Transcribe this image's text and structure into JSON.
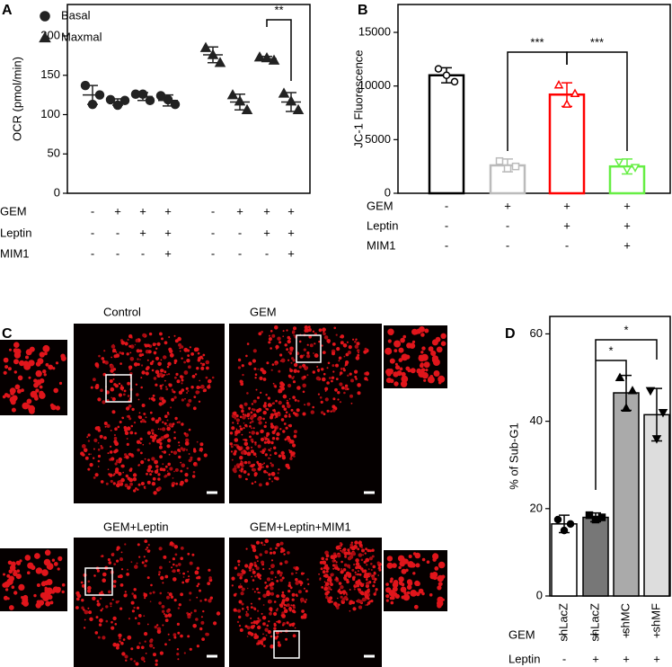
{
  "chart_data": [
    {
      "panel": "A",
      "type": "scatter",
      "ylabel": "OCR (pmol/min)",
      "ylim": [
        0,
        240
      ],
      "yticks": [
        0,
        50,
        100,
        150,
        200
      ],
      "series": [
        {
          "name": "Basal",
          "marker": "circle",
          "color": "#222222",
          "points": [
            [
              137,
              113,
              125
            ],
            [
              119,
              112,
              118
            ],
            [
              126,
              126,
              118
            ],
            [
              124,
              119,
              113
            ]
          ],
          "means": [
            125,
            116,
            123,
            118
          ],
          "errors": [
            12,
            4,
            5,
            7
          ]
        },
        {
          "name": "Maxmal",
          "marker": "triangle",
          "color": "#222222",
          "points": [
            [
              185,
              176,
              166
            ],
            [
              125,
              117,
              106
            ],
            [
              173,
              172,
              169
            ],
            [
              127,
              117,
              106
            ]
          ],
          "means": [
            176,
            116,
            171,
            116
          ],
          "errors": [
            10,
            10,
            3,
            12
          ]
        }
      ],
      "annotations": [
        {
          "label": "**",
          "from": 6,
          "to": 7
        }
      ],
      "conditions": [
        {
          "name": "GEM",
          "values": [
            "-",
            "+",
            "+",
            "+",
            "-",
            "+",
            "+",
            "+"
          ]
        },
        {
          "name": "Leptin",
          "values": [
            "-",
            "-",
            "+",
            "+",
            "-",
            "-",
            "+",
            "+"
          ]
        },
        {
          "name": "MIM1",
          "values": [
            "-",
            "-",
            "-",
            "+",
            "-",
            "-",
            "-",
            "+"
          ]
        }
      ]
    },
    {
      "panel": "B",
      "type": "bar",
      "ylabel": "JC-1 Fluorescence",
      "ylim": [
        0,
        17600
      ],
      "yticks": [
        0,
        5000,
        10000,
        15000
      ],
      "values": [
        11000,
        2600,
        9200,
        2500
      ],
      "errors": [
        700,
        600,
        1100,
        700
      ],
      "points": [
        [
          11600,
          11000,
          10400
        ],
        [
          3000,
          2300,
          2500
        ],
        [
          10100,
          8300,
          9300
        ],
        [
          2900,
          2200,
          2400
        ]
      ],
      "edge_colors": [
        "#000000",
        "#bbbbbb",
        "#ff0000",
        "#66ee44"
      ],
      "markers": [
        "circle",
        "square",
        "triangle",
        "triangle-down"
      ],
      "marker_fill": false,
      "annotations": [
        {
          "label": "***",
          "from": 1,
          "to": 2
        },
        {
          "label": "***",
          "from": 2,
          "to": 3
        }
      ],
      "conditions": [
        {
          "name": "GEM",
          "values": [
            "-",
            "+",
            "+",
            "+"
          ]
        },
        {
          "name": "Leptin",
          "values": [
            "-",
            "-",
            "+",
            "+"
          ]
        },
        {
          "name": "MIM1",
          "values": [
            "-",
            "-",
            "-",
            "+"
          ]
        }
      ]
    },
    {
      "panel": "D",
      "type": "bar",
      "ylabel": "% of Sub-G1",
      "ylim": [
        0,
        64
      ],
      "yticks": [
        0,
        20,
        40,
        60
      ],
      "categories": [
        "shLacZ",
        "shLacZ",
        "shMC",
        "shMF"
      ],
      "values": [
        16.5,
        18,
        46.5,
        41.5
      ],
      "errors": [
        2,
        1,
        4,
        6
      ],
      "points": [
        [
          17.5,
          15,
          16.5
        ],
        [
          18.5,
          17.5,
          18
        ],
        [
          50,
          43,
          47
        ],
        [
          47,
          36,
          42
        ]
      ],
      "colors": [
        "#ffffff",
        "#777777",
        "#aaaaaa",
        "#dddddd"
      ],
      "edge_color": "#000000",
      "markers": [
        "circle",
        "square",
        "triangle",
        "triangle-down"
      ],
      "marker_fill": true,
      "annotations": [
        {
          "label": "*",
          "from": 1,
          "to": 2
        },
        {
          "label": "*",
          "from": 1,
          "to": 3
        }
      ],
      "conditions": [
        {
          "name": "GEM",
          "values": [
            "-",
            "+",
            "+",
            "+"
          ]
        },
        {
          "name": "Leptin",
          "values": [
            "-",
            "+",
            "+",
            "+"
          ]
        }
      ]
    }
  ],
  "panel_c": {
    "letter": "C",
    "images": [
      {
        "label": "Control"
      },
      {
        "label": "GEM"
      },
      {
        "label": "GEM+Leptin"
      },
      {
        "label": "GEM+Leptin+MIM1"
      }
    ]
  }
}
